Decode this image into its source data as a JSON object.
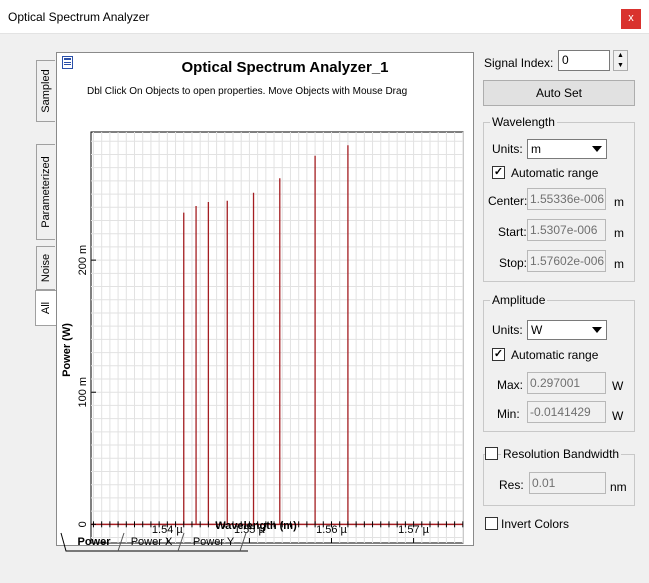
{
  "window": {
    "title": "Optical Spectrum Analyzer",
    "close_label": "x"
  },
  "side_tabs": [
    "Sampled",
    "Parameterized",
    "Noise",
    "All"
  ],
  "panel": {
    "title": "Optical Spectrum Analyzer_1",
    "hint": "Dbl Click On Objects to open properties.  Move Objects with Mouse Drag"
  },
  "bottom_tabs": [
    "Power",
    "Power X",
    "Power Y"
  ],
  "chart_data": {
    "type": "line",
    "xlabel": "Wavelength (m)",
    "ylabel": "Power (W)",
    "x_unit": "m",
    "xlim": [
      1.5307e-06,
      1.57602e-06
    ],
    "ylim": [
      -0.0141429,
      0.297001
    ],
    "x_ticks": [
      {
        "value": 1.54e-06,
        "label": "1.54 µ"
      },
      {
        "value": 1.55e-06,
        "label": "1.55 µ"
      },
      {
        "value": 1.56e-06,
        "label": "1.56 µ"
      },
      {
        "value": 1.57e-06,
        "label": "1.57 µ"
      }
    ],
    "y_ticks": [
      {
        "value": 0,
        "label": "0"
      },
      {
        "value": 0.1,
        "label": "100 m"
      },
      {
        "value": 0.2,
        "label": "200 m"
      }
    ],
    "grid": true,
    "color": "#a41e22",
    "series": [
      {
        "peaks": [
          {
            "x": 1.542e-06,
            "y": 0.236
          },
          {
            "x": 1.5435e-06,
            "y": 0.241
          },
          {
            "x": 1.545e-06,
            "y": 0.244
          },
          {
            "x": 1.5473e-06,
            "y": 0.245
          },
          {
            "x": 1.5505e-06,
            "y": 0.251
          },
          {
            "x": 1.5537e-06,
            "y": 0.262
          },
          {
            "x": 1.558e-06,
            "y": 0.279
          },
          {
            "x": 1.562e-06,
            "y": 0.287
          }
        ],
        "baseline": 0.0
      }
    ]
  },
  "controls": {
    "signal_index_label": "Signal Index:",
    "signal_index_value": "0",
    "auto_set_label": "Auto Set",
    "wavelength": {
      "group_label": "Wavelength",
      "units_label": "Units:",
      "units_value": "m",
      "auto_range_label": "Automatic range",
      "auto_range_checked": true,
      "center_label": "Center:",
      "center_value": "1.55336e-006",
      "start_label": "Start:",
      "start_value": "1.5307e-006",
      "stop_label": "Stop:",
      "stop_value": "1.57602e-006",
      "unit": "m"
    },
    "amplitude": {
      "group_label": "Amplitude",
      "units_label": "Units:",
      "units_value": "W",
      "auto_range_label": "Automatic range",
      "auto_range_checked": true,
      "max_label": "Max:",
      "max_value": "0.297001",
      "min_label": "Min:",
      "min_value": "-0.0141429",
      "unit": "W"
    },
    "resolution": {
      "group_label": "Resolution Bandwidth",
      "checked": false,
      "res_label": "Res:",
      "res_value": "0.01",
      "unit": "nm"
    },
    "invert_colors_label": "Invert Colors",
    "invert_colors_checked": false
  }
}
